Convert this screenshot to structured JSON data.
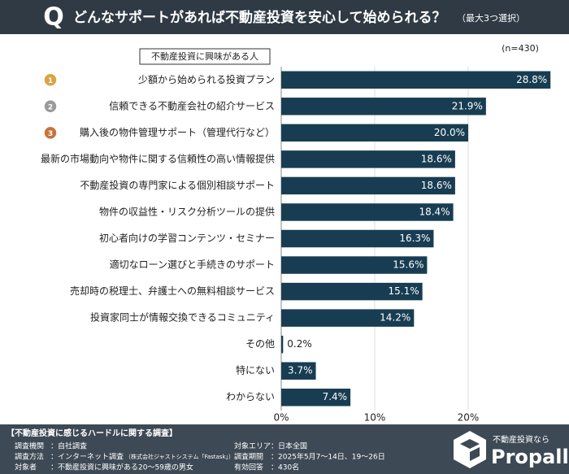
{
  "chart_data": {
    "type": "barh",
    "title": "どんなサポートがあれば不動産投資を安心して始められる？",
    "subtitle": "（最大3つ選択）",
    "header_mark": "Q",
    "group_label": "不動産投資に興味がある人",
    "sample_size": "(n=430)",
    "categories": [
      "少額から始められる投資プラン",
      "信頼できる不動産会社の紹介サービス",
      "購入後の物件管理サポート（管理代行など）",
      "最新の市場動向や物件に関する信頼性の高い情報提供",
      "不動産投資の専門家による個別相談サポート",
      "物件の収益性・リスク分析ツールの提供",
      "初心者向けの学習コンテンツ・セミナー",
      "適切なローン選びと手続きのサポート",
      "売却時の税理士、弁護士への無料相談サービス",
      "投資家同士が情報交換できるコミュニティ",
      "その他",
      "特にない",
      "わからない"
    ],
    "values": [
      28.8,
      21.9,
      20.0,
      18.6,
      18.6,
      18.4,
      16.3,
      15.6,
      15.1,
      14.2,
      0.2,
      3.7,
      7.4
    ],
    "value_labels": [
      "28.8%",
      "21.9%",
      "20.0%",
      "18.6%",
      "18.6%",
      "18.4%",
      "16.3%",
      "15.6%",
      "15.1%",
      "14.2%",
      "0.2%",
      "3.7%",
      "7.4%"
    ],
    "ranks": [
      "1",
      "2",
      "3"
    ],
    "color": "#183d52",
    "xlim": [
      0,
      30
    ],
    "xticks": [
      {
        "value": 0,
        "label": "0%"
      },
      {
        "value": 10,
        "label": "10%"
      },
      {
        "value": 20,
        "label": "20%"
      }
    ],
    "grid": true
  },
  "footer": {
    "title": "【不動産投資に感じるハードルに関する調査】",
    "items": [
      {
        "label": "調査機関",
        "value": "：自社調査"
      },
      {
        "label": "調査方法",
        "value": "：インターネット調査",
        "note": "（株式会社ジャストシステム「Fastask」）"
      },
      {
        "label": "対象者",
        "value": "：不動産投資に興味がある20〜59歳の男女"
      },
      {
        "label": "対象エリア",
        "value": "：日本全国"
      },
      {
        "label": "調査期間",
        "value": "：2025年5月7〜14日、19〜26日"
      },
      {
        "label": "有効回答",
        "value": "：430名"
      }
    ]
  },
  "brand": {
    "tagline": "不動産投資なら",
    "name": "Propally"
  }
}
